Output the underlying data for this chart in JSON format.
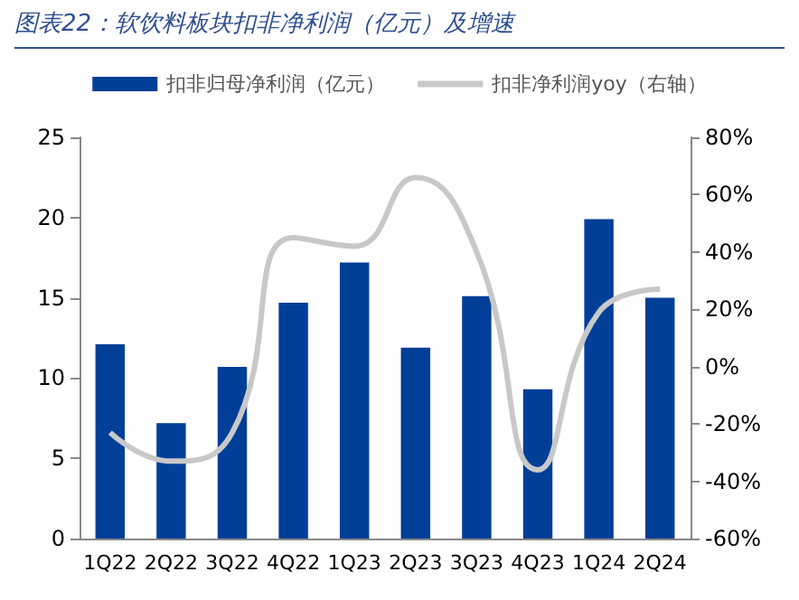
{
  "chart_data": {
    "type": "bar",
    "title": "图表22：软饮料板块扣非净利润（亿元）及增速",
    "categories": [
      "1Q22",
      "2Q22",
      "3Q22",
      "4Q22",
      "1Q23",
      "2Q23",
      "3Q23",
      "4Q23",
      "1Q24",
      "2Q24"
    ],
    "series": [
      {
        "name": "扣非归母净利润（亿元）",
        "color": "#003f98",
        "values": [
          12.1,
          7.2,
          10.7,
          14.7,
          17.2,
          11.9,
          15.1,
          9.3,
          19.9,
          15.0
        ]
      },
      {
        "name": "扣非净利润yoy（右轴）",
        "type": "line",
        "axis": "y2",
        "color": "#c8c8c8",
        "values": [
          -23,
          -33,
          -23,
          45,
          42,
          66,
          40,
          -36,
          19,
          27
        ]
      }
    ],
    "ylim": [
      0,
      25
    ],
    "yticks": [
      0,
      5,
      10,
      15,
      20,
      25
    ],
    "y2lim": [
      -60,
      80
    ],
    "y2ticks": [
      {
        "value": -60,
        "label": "-60%"
      },
      {
        "value": -40,
        "label": "-40%"
      },
      {
        "value": -20,
        "label": "-20%"
      },
      {
        "value": 0,
        "label": "0%"
      },
      {
        "value": 20,
        "label": "20%"
      },
      {
        "value": 40,
        "label": "40%"
      },
      {
        "value": 60,
        "label": "60%"
      },
      {
        "value": 80,
        "label": "80%"
      }
    ],
    "legend": "top",
    "grid": false,
    "marker": "none",
    "line_style": "solid"
  }
}
